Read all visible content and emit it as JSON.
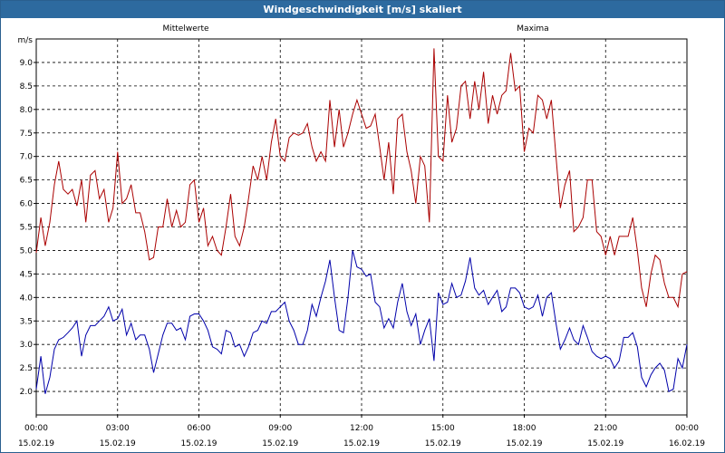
{
  "window": {
    "title": "Windgeschwindigkeit [m/s] skaliert"
  },
  "chart_data": {
    "type": "line",
    "title": "Windgeschwindigkeit [m/s] skaliert",
    "ylabel": "m/s",
    "xlabel": "",
    "ylim": [
      1.5,
      9.5
    ],
    "xlim_hours": [
      0,
      24
    ],
    "grid": true,
    "y_ticks": [
      "2.0",
      "2.5",
      "3.0",
      "3.5",
      "4.0",
      "4.5",
      "5.0",
      "5.5",
      "6.0",
      "6.5",
      "7.0",
      "7.5",
      "8.0",
      "8.5",
      "9.0"
    ],
    "x_ticks": [
      {
        "time": "00:00",
        "date": "15.02.19"
      },
      {
        "time": "03:00",
        "date": "15.02.19"
      },
      {
        "time": "06:00",
        "date": "15.02.19"
      },
      {
        "time": "09:00",
        "date": "15.02.19"
      },
      {
        "time": "12:00",
        "date": "15.02.19"
      },
      {
        "time": "15:00",
        "date": "15.02.19"
      },
      {
        "time": "18:00",
        "date": "15.02.19"
      },
      {
        "time": "21:00",
        "date": "15.02.19"
      },
      {
        "time": "00:00",
        "date": "16.02.19"
      }
    ],
    "series": [
      {
        "name": "Mittelwerte",
        "color": "#0000aa",
        "points": [
          [
            0.0,
            2.05
          ],
          [
            0.17,
            2.75
          ],
          [
            0.33,
            1.95
          ],
          [
            0.5,
            2.3
          ],
          [
            0.67,
            2.9
          ],
          [
            0.83,
            3.1
          ],
          [
            1.0,
            3.15
          ],
          [
            1.17,
            3.25
          ],
          [
            1.33,
            3.35
          ],
          [
            1.5,
            3.5
          ],
          [
            1.67,
            2.75
          ],
          [
            1.83,
            3.2
          ],
          [
            2.0,
            3.4
          ],
          [
            2.17,
            3.4
          ],
          [
            2.33,
            3.5
          ],
          [
            2.5,
            3.6
          ],
          [
            2.67,
            3.8
          ],
          [
            2.83,
            3.5
          ],
          [
            3.0,
            3.55
          ],
          [
            3.17,
            3.75
          ],
          [
            3.33,
            3.2
          ],
          [
            3.5,
            3.45
          ],
          [
            3.67,
            3.1
          ],
          [
            3.83,
            3.2
          ],
          [
            4.0,
            3.2
          ],
          [
            4.17,
            2.9
          ],
          [
            4.33,
            2.4
          ],
          [
            4.5,
            2.8
          ],
          [
            4.67,
            3.2
          ],
          [
            4.83,
            3.45
          ],
          [
            5.0,
            3.45
          ],
          [
            5.17,
            3.3
          ],
          [
            5.33,
            3.35
          ],
          [
            5.5,
            3.1
          ],
          [
            5.67,
            3.6
          ],
          [
            5.83,
            3.65
          ],
          [
            6.0,
            3.65
          ],
          [
            6.17,
            3.5
          ],
          [
            6.33,
            3.3
          ],
          [
            6.5,
            2.95
          ],
          [
            6.67,
            2.9
          ],
          [
            6.83,
            2.8
          ],
          [
            7.0,
            3.3
          ],
          [
            7.17,
            3.25
          ],
          [
            7.33,
            2.95
          ],
          [
            7.5,
            3.0
          ],
          [
            7.67,
            2.75
          ],
          [
            7.83,
            2.95
          ],
          [
            8.0,
            3.25
          ],
          [
            8.17,
            3.3
          ],
          [
            8.33,
            3.5
          ],
          [
            8.5,
            3.45
          ],
          [
            8.67,
            3.7
          ],
          [
            8.83,
            3.7
          ],
          [
            9.0,
            3.8
          ],
          [
            9.17,
            3.9
          ],
          [
            9.33,
            3.5
          ],
          [
            9.5,
            3.3
          ],
          [
            9.67,
            3.0
          ],
          [
            9.83,
            3.0
          ],
          [
            10.0,
            3.3
          ],
          [
            10.17,
            3.85
          ],
          [
            10.33,
            3.6
          ],
          [
            10.5,
            4.0
          ],
          [
            10.67,
            4.35
          ],
          [
            10.83,
            4.8
          ],
          [
            11.0,
            4.0
          ],
          [
            11.17,
            3.3
          ],
          [
            11.33,
            3.25
          ],
          [
            11.5,
            4.0
          ],
          [
            11.67,
            5.0
          ],
          [
            11.83,
            4.65
          ],
          [
            12.0,
            4.6
          ],
          [
            12.17,
            4.45
          ],
          [
            12.33,
            4.5
          ],
          [
            12.5,
            3.9
          ],
          [
            12.67,
            3.8
          ],
          [
            12.83,
            3.35
          ],
          [
            13.0,
            3.55
          ],
          [
            13.17,
            3.35
          ],
          [
            13.33,
            3.9
          ],
          [
            13.5,
            4.3
          ],
          [
            13.67,
            3.7
          ],
          [
            13.83,
            3.4
          ],
          [
            14.0,
            3.65
          ],
          [
            14.17,
            3.0
          ],
          [
            14.33,
            3.3
          ],
          [
            14.5,
            3.55
          ],
          [
            14.67,
            2.65
          ],
          [
            14.83,
            4.1
          ],
          [
            15.0,
            3.85
          ],
          [
            15.17,
            3.9
          ],
          [
            15.33,
            4.3
          ],
          [
            15.5,
            4.0
          ],
          [
            15.67,
            4.05
          ],
          [
            15.83,
            4.35
          ],
          [
            16.0,
            4.85
          ],
          [
            16.17,
            4.2
          ],
          [
            16.33,
            4.05
          ],
          [
            16.5,
            4.15
          ],
          [
            16.67,
            3.85
          ],
          [
            16.83,
            4.0
          ],
          [
            17.0,
            4.15
          ],
          [
            17.17,
            3.7
          ],
          [
            17.33,
            3.8
          ],
          [
            17.5,
            4.2
          ],
          [
            17.67,
            4.2
          ],
          [
            17.83,
            4.1
          ],
          [
            18.0,
            3.8
          ],
          [
            18.17,
            3.75
          ],
          [
            18.33,
            3.8
          ],
          [
            18.5,
            4.05
          ],
          [
            18.67,
            3.6
          ],
          [
            18.83,
            4.0
          ],
          [
            19.0,
            4.1
          ],
          [
            19.17,
            3.45
          ],
          [
            19.33,
            2.9
          ],
          [
            19.5,
            3.1
          ],
          [
            19.67,
            3.35
          ],
          [
            19.83,
            3.1
          ],
          [
            20.0,
            3.0
          ],
          [
            20.17,
            3.4
          ],
          [
            20.33,
            3.15
          ],
          [
            20.5,
            2.85
          ],
          [
            20.67,
            2.75
          ],
          [
            20.83,
            2.7
          ],
          [
            21.0,
            2.75
          ],
          [
            21.17,
            2.7
          ],
          [
            21.33,
            2.5
          ],
          [
            21.5,
            2.65
          ],
          [
            21.67,
            3.15
          ],
          [
            21.83,
            3.15
          ],
          [
            22.0,
            3.25
          ],
          [
            22.17,
            2.95
          ],
          [
            22.33,
            2.3
          ],
          [
            22.5,
            2.1
          ],
          [
            22.67,
            2.35
          ],
          [
            22.83,
            2.5
          ],
          [
            23.0,
            2.6
          ],
          [
            23.17,
            2.45
          ],
          [
            23.33,
            2.0
          ],
          [
            23.5,
            2.05
          ],
          [
            23.67,
            2.7
          ],
          [
            23.83,
            2.5
          ],
          [
            24.0,
            3.0
          ]
        ]
      },
      {
        "name": "Maxima",
        "color": "#aa0000",
        "points": [
          [
            0.0,
            4.95
          ],
          [
            0.17,
            5.7
          ],
          [
            0.33,
            5.1
          ],
          [
            0.5,
            5.6
          ],
          [
            0.67,
            6.4
          ],
          [
            0.83,
            6.9
          ],
          [
            1.0,
            6.3
          ],
          [
            1.17,
            6.2
          ],
          [
            1.33,
            6.3
          ],
          [
            1.5,
            5.95
          ],
          [
            1.67,
            6.5
          ],
          [
            1.83,
            5.6
          ],
          [
            2.0,
            6.6
          ],
          [
            2.17,
            6.7
          ],
          [
            2.33,
            6.1
          ],
          [
            2.5,
            6.3
          ],
          [
            2.67,
            5.6
          ],
          [
            2.83,
            5.9
          ],
          [
            3.0,
            7.1
          ],
          [
            3.17,
            6.0
          ],
          [
            3.33,
            6.1
          ],
          [
            3.5,
            6.4
          ],
          [
            3.67,
            5.8
          ],
          [
            3.83,
            5.8
          ],
          [
            4.0,
            5.4
          ],
          [
            4.17,
            4.8
          ],
          [
            4.33,
            4.85
          ],
          [
            4.5,
            5.5
          ],
          [
            4.67,
            5.5
          ],
          [
            4.83,
            6.1
          ],
          [
            5.0,
            5.5
          ],
          [
            5.17,
            5.85
          ],
          [
            5.33,
            5.5
          ],
          [
            5.5,
            5.6
          ],
          [
            5.67,
            6.4
          ],
          [
            5.83,
            6.5
          ],
          [
            6.0,
            5.6
          ],
          [
            6.17,
            5.9
          ],
          [
            6.33,
            5.1
          ],
          [
            6.5,
            5.3
          ],
          [
            6.67,
            5.0
          ],
          [
            6.83,
            4.9
          ],
          [
            7.0,
            5.5
          ],
          [
            7.17,
            6.2
          ],
          [
            7.33,
            5.3
          ],
          [
            7.5,
            5.1
          ],
          [
            7.67,
            5.5
          ],
          [
            7.83,
            6.1
          ],
          [
            8.0,
            6.8
          ],
          [
            8.17,
            6.5
          ],
          [
            8.33,
            7.0
          ],
          [
            8.5,
            6.5
          ],
          [
            8.67,
            7.3
          ],
          [
            8.83,
            7.8
          ],
          [
            9.0,
            7.0
          ],
          [
            9.17,
            6.9
          ],
          [
            9.33,
            7.4
          ],
          [
            9.5,
            7.5
          ],
          [
            9.67,
            7.45
          ],
          [
            9.83,
            7.5
          ],
          [
            10.0,
            7.7
          ],
          [
            10.17,
            7.2
          ],
          [
            10.33,
            6.9
          ],
          [
            10.5,
            7.1
          ],
          [
            10.67,
            6.9
          ],
          [
            10.83,
            8.2
          ],
          [
            11.0,
            7.2
          ],
          [
            11.17,
            8.0
          ],
          [
            11.33,
            7.2
          ],
          [
            11.5,
            7.5
          ],
          [
            11.67,
            7.9
          ],
          [
            11.83,
            8.2
          ],
          [
            12.0,
            7.9
          ],
          [
            12.17,
            7.6
          ],
          [
            12.33,
            7.65
          ],
          [
            12.5,
            7.9
          ],
          [
            12.67,
            7.2
          ],
          [
            12.83,
            6.5
          ],
          [
            13.0,
            7.3
          ],
          [
            13.17,
            6.2
          ],
          [
            13.33,
            7.8
          ],
          [
            13.5,
            7.9
          ],
          [
            13.67,
            7.1
          ],
          [
            13.83,
            6.7
          ],
          [
            14.0,
            6.0
          ],
          [
            14.17,
            7.0
          ],
          [
            14.33,
            6.8
          ],
          [
            14.5,
            5.6
          ],
          [
            14.67,
            9.3
          ],
          [
            14.83,
            7.0
          ],
          [
            15.0,
            6.9
          ],
          [
            15.17,
            8.3
          ],
          [
            15.33,
            7.3
          ],
          [
            15.5,
            7.6
          ],
          [
            15.67,
            8.5
          ],
          [
            15.83,
            8.6
          ],
          [
            16.0,
            7.8
          ],
          [
            16.17,
            8.6
          ],
          [
            16.33,
            8.0
          ],
          [
            16.5,
            8.8
          ],
          [
            16.67,
            7.7
          ],
          [
            16.83,
            8.3
          ],
          [
            17.0,
            7.9
          ],
          [
            17.17,
            8.3
          ],
          [
            17.33,
            8.4
          ],
          [
            17.5,
            9.2
          ],
          [
            17.67,
            8.4
          ],
          [
            17.83,
            8.5
          ],
          [
            18.0,
            7.1
          ],
          [
            18.17,
            7.6
          ],
          [
            18.33,
            7.5
          ],
          [
            18.5,
            8.3
          ],
          [
            18.67,
            8.2
          ],
          [
            18.83,
            7.8
          ],
          [
            19.0,
            8.2
          ],
          [
            19.17,
            7.0
          ],
          [
            19.33,
            5.9
          ],
          [
            19.5,
            6.4
          ],
          [
            19.67,
            6.7
          ],
          [
            19.83,
            5.4
          ],
          [
            20.0,
            5.5
          ],
          [
            20.17,
            5.7
          ],
          [
            20.33,
            6.5
          ],
          [
            20.5,
            6.5
          ],
          [
            20.67,
            5.4
          ],
          [
            20.83,
            5.3
          ],
          [
            21.0,
            4.9
          ],
          [
            21.17,
            5.3
          ],
          [
            21.33,
            4.9
          ],
          [
            21.5,
            5.3
          ],
          [
            21.67,
            5.3
          ],
          [
            21.83,
            5.3
          ],
          [
            22.0,
            5.7
          ],
          [
            22.17,
            5.0
          ],
          [
            22.33,
            4.2
          ],
          [
            22.5,
            3.8
          ],
          [
            22.67,
            4.5
          ],
          [
            22.83,
            4.9
          ],
          [
            23.0,
            4.8
          ],
          [
            23.17,
            4.3
          ],
          [
            23.33,
            4.0
          ],
          [
            23.5,
            4.0
          ],
          [
            23.67,
            3.8
          ],
          [
            23.83,
            4.5
          ],
          [
            24.0,
            4.55
          ]
        ]
      }
    ]
  }
}
